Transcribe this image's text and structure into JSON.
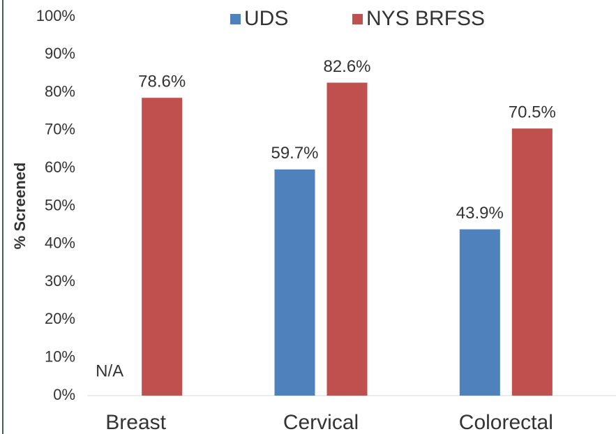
{
  "chart_data": {
    "type": "bar",
    "y_label": "% Screened",
    "categories": [
      "Breast",
      "Cervical",
      "Colorectal"
    ],
    "series": [
      {
        "name": "UDS",
        "color": "#4f81bd",
        "values": [
          null,
          59.7,
          43.9
        ],
        "value_labels": [
          "N/A",
          "59.7%",
          "43.9%"
        ]
      },
      {
        "name": "NYS BRFSS",
        "color": "#c0504d",
        "values": [
          78.6,
          82.6,
          70.5
        ],
        "value_labels": [
          "78.6%",
          "82.6%",
          "70.5%"
        ]
      }
    ],
    "ylim": [
      0,
      100
    ],
    "yticks": [
      {
        "value": 0,
        "label": "0%"
      },
      {
        "value": 10,
        "label": "10%"
      },
      {
        "value": 20,
        "label": "20%"
      },
      {
        "value": 30,
        "label": "30%"
      },
      {
        "value": 40,
        "label": "40%"
      },
      {
        "value": 50,
        "label": "50%"
      },
      {
        "value": 60,
        "label": "60%"
      },
      {
        "value": 70,
        "label": "70%"
      },
      {
        "value": 80,
        "label": "80%"
      },
      {
        "value": 90,
        "label": "90%"
      },
      {
        "value": 100,
        "label": "100%"
      }
    ],
    "grid": false,
    "legend": "top"
  }
}
